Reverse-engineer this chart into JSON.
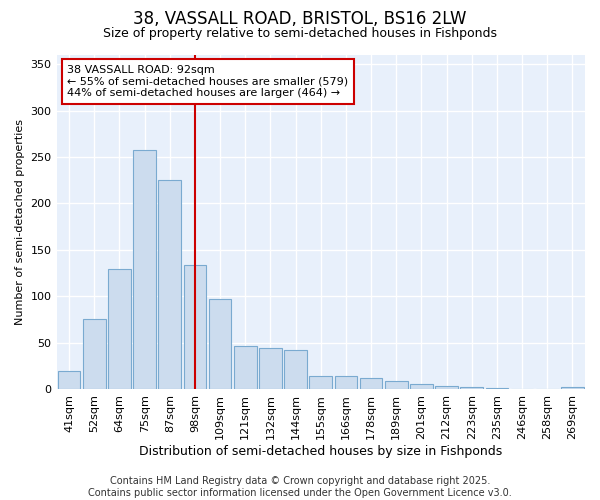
{
  "title": "38, VASSALL ROAD, BRISTOL, BS16 2LW",
  "subtitle": "Size of property relative to semi-detached houses in Fishponds",
  "xlabel": "Distribution of semi-detached houses by size in Fishponds",
  "ylabel": "Number of semi-detached properties",
  "categories": [
    "41sqm",
    "52sqm",
    "64sqm",
    "75sqm",
    "87sqm",
    "98sqm",
    "109sqm",
    "121sqm",
    "132sqm",
    "144sqm",
    "155sqm",
    "166sqm",
    "178sqm",
    "189sqm",
    "201sqm",
    "212sqm",
    "223sqm",
    "235sqm",
    "246sqm",
    "258sqm",
    "269sqm"
  ],
  "values": [
    19,
    75,
    129,
    258,
    225,
    134,
    97,
    46,
    44,
    42,
    14,
    14,
    12,
    9,
    5,
    3,
    2,
    1,
    0,
    0,
    2
  ],
  "bar_color": "#ccdcee",
  "bar_edge_color": "#7aaad0",
  "vline_x": 5.0,
  "vline_color": "#cc0000",
  "annotation_text": "38 VASSALL ROAD: 92sqm\n← 55% of semi-detached houses are smaller (579)\n44% of semi-detached houses are larger (464) →",
  "annotation_box_facecolor": "#ffffff",
  "annotation_box_edgecolor": "#cc0000",
  "ylim": [
    0,
    360
  ],
  "yticks": [
    0,
    50,
    100,
    150,
    200,
    250,
    300,
    350
  ],
  "plot_bg_color": "#e8f0fb",
  "fig_bg_color": "#ffffff",
  "grid_color": "#ffffff",
  "footer_line1": "Contains HM Land Registry data © Crown copyright and database right 2025.",
  "footer_line2": "Contains public sector information licensed under the Open Government Licence v3.0.",
  "title_fontsize": 12,
  "subtitle_fontsize": 9,
  "xlabel_fontsize": 9,
  "ylabel_fontsize": 8,
  "tick_fontsize": 8,
  "annotation_fontsize": 8,
  "footer_fontsize": 7
}
